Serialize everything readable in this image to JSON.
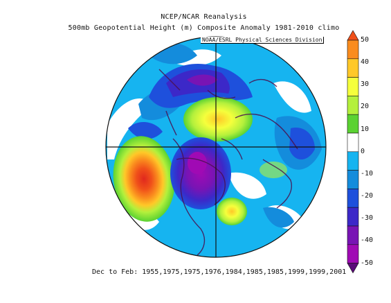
{
  "title": "NCEP/NCAR Reanalysis",
  "subtitle": "500mb Geopotential Height (m) Composite Anomaly 1981-2010 climo",
  "credit": "NOAA/ESRL Physical Sciences Division",
  "footer": "Dec to Feb: 1955,1975,1975,1976,1984,1985,1985,1999,1999,2001",
  "colorbar": {
    "labels": [
      "50",
      "40",
      "30",
      "20",
      "10",
      "0",
      "-10",
      "-20",
      "-30",
      "-40",
      "-50"
    ],
    "colors": [
      "#f0501a",
      "#fa8c1e",
      "#ffc828",
      "#f5ff3c",
      "#b4f03c",
      "#5ad232",
      "#ffffff",
      "#16b4f0",
      "#148cdc",
      "#1e50dc",
      "#3c28c8",
      "#7814b4",
      "#a00ab4",
      "#5a0a78"
    ]
  }
}
